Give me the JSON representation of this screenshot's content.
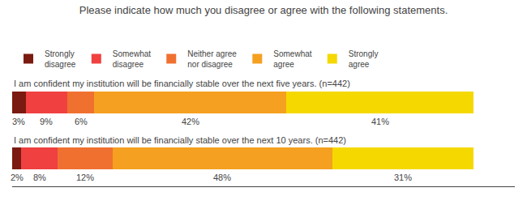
{
  "chart_data": {
    "type": "bar",
    "title": "Please indicate how much you disagree or agree with the following statements.",
    "orientation": "horizontal",
    "stacked": true,
    "categories": [
      "I am confident my institution will be financially stable over the next five years. (n=442)",
      "I am confident my institution will be financially stable over the next 10 years. (n=442)"
    ],
    "series": [
      {
        "name": "Strongly\ndisagree",
        "color": "#7b1a10",
        "values": [
          3,
          2
        ],
        "value_labels": [
          "3%",
          "2%"
        ]
      },
      {
        "name": "Somewhat\ndisagree",
        "color": "#f04040",
        "values": [
          9,
          8
        ],
        "value_labels": [
          "9%",
          "8%"
        ]
      },
      {
        "name": "Neither agree\nnor disagree",
        "color": "#f07030",
        "values": [
          6,
          12
        ],
        "value_labels": [
          "6%",
          "12%"
        ]
      },
      {
        "name": "Somewhat\nagree",
        "color": "#f5a020",
        "values": [
          42,
          48
        ],
        "value_labels": [
          "42%",
          "48%"
        ]
      },
      {
        "name": "Strongly\nagree",
        "color": "#f5d800",
        "values": [
          41,
          31
        ],
        "value_labels": [
          "41%",
          "31%"
        ]
      }
    ],
    "xlim": [
      0,
      110
    ],
    "tick_labels": false,
    "grid": false,
    "data_labels": true,
    "legend": "top"
  }
}
